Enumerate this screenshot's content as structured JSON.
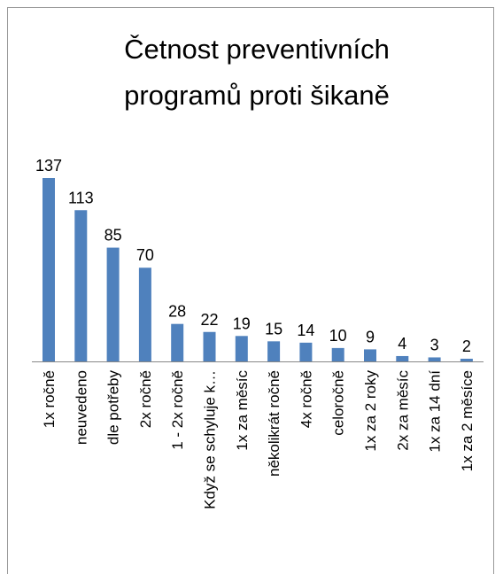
{
  "chart_data": {
    "type": "bar",
    "title": [
      "Četnost preventivních",
      "programů proti šikaně"
    ],
    "categories": [
      "1x ročně",
      "neuvedeno",
      "dle potřeby",
      "2x ročně",
      "1 - 2x ročně",
      "Když se schyluje k…",
      "1x za měsíc",
      "několikrát ročně",
      "4x ročně",
      "celoročně",
      "1x za 2 roky",
      "2x za měsíc",
      "1x za 14 dní",
      "1x za 2 měsíce"
    ],
    "values": [
      137,
      113,
      85,
      70,
      28,
      22,
      19,
      15,
      14,
      10,
      9,
      4,
      3,
      2
    ],
    "color": "#4f81bd"
  }
}
